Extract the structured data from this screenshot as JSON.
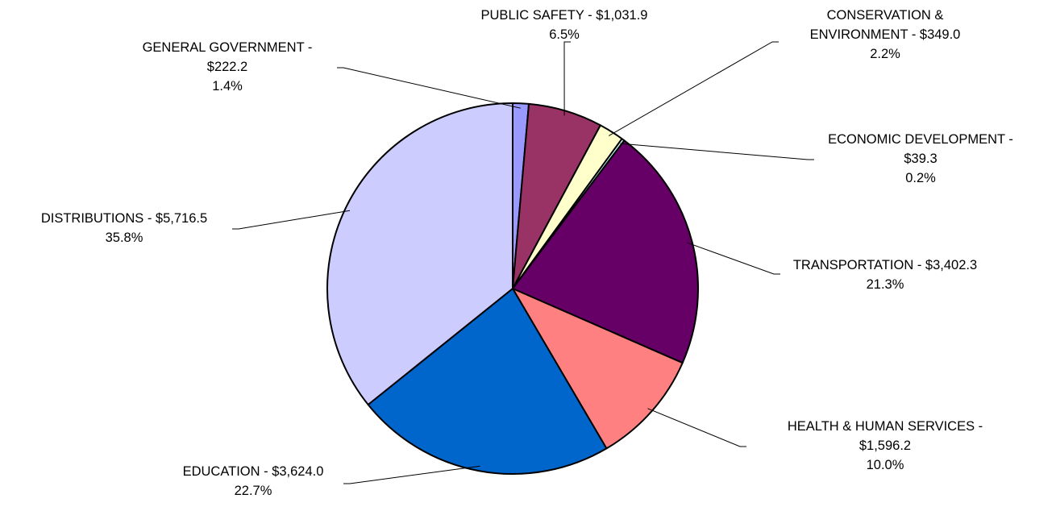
{
  "chart_data": {
    "type": "pie",
    "title": "",
    "slices": [
      {
        "name": "GENERAL GOVERNMENT",
        "label_lines": [
          "GENERAL GOVERNMENT -",
          "$222.2",
          "1.4%"
        ],
        "value": 222.2,
        "percent": 1.4,
        "color": "#9999FF"
      },
      {
        "name": "PUBLIC SAFETY",
        "label_lines": [
          "PUBLIC SAFETY - $1,031.9",
          "6.5%"
        ],
        "value": 1031.9,
        "percent": 6.5,
        "color": "#993366"
      },
      {
        "name": "CONSERVATION & ENVIRONMENT",
        "label_lines": [
          "CONSERVATION &",
          "ENVIRONMENT - $349.0",
          "2.2%"
        ],
        "value": 349.0,
        "percent": 2.2,
        "color": "#FFFFCC"
      },
      {
        "name": "ECONOMIC DEVELOPMENT",
        "label_lines": [
          "ECONOMIC DEVELOPMENT -",
          "$39.3",
          "0.2%"
        ],
        "value": 39.3,
        "percent": 0.2,
        "color": "#CCFFFF"
      },
      {
        "name": "TRANSPORTATION",
        "label_lines": [
          "TRANSPORTATION - $3,402.3",
          "21.3%"
        ],
        "value": 3402.3,
        "percent": 21.3,
        "color": "#660066"
      },
      {
        "name": "HEALTH & HUMAN SERVICES",
        "label_lines": [
          "HEALTH & HUMAN SERVICES -",
          "$1,596.2",
          "10.0%"
        ],
        "value": 1596.2,
        "percent": 10.0,
        "color": "#FF8080"
      },
      {
        "name": "EDUCATION",
        "label_lines": [
          "EDUCATION - $3,624.0",
          "22.7%"
        ],
        "value": 3624.0,
        "percent": 22.7,
        "color": "#0066CC"
      },
      {
        "name": "DISTRIBUTIONS",
        "label_lines": [
          "DISTRIBUTIONS - $5,716.5",
          "35.8%"
        ],
        "value": 5716.5,
        "percent": 35.8,
        "color": "#CCCCFF"
      }
    ],
    "start_angle": "12 o'clock",
    "direction": "clockwise",
    "legend": "none"
  }
}
